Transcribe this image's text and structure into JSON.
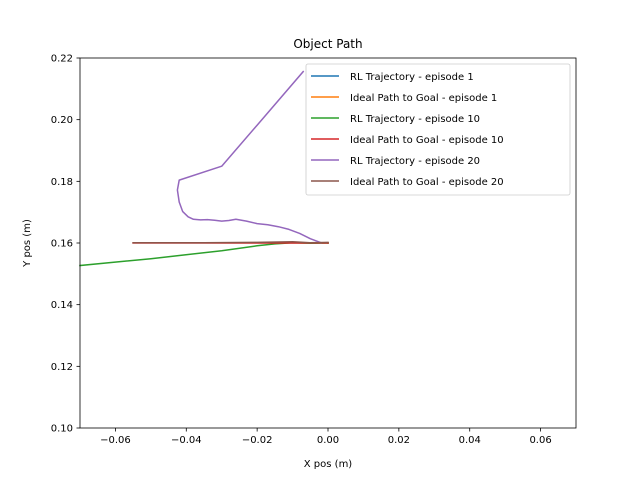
{
  "chart_data": {
    "type": "line",
    "title": "Object Path",
    "xlabel": "X pos (m)",
    "ylabel": "Y pos (m)",
    "xlim": [
      -0.07,
      0.07
    ],
    "ylim": [
      0.1,
      0.22
    ],
    "x_ticks": [
      -0.06,
      -0.04,
      -0.02,
      0.0,
      0.02,
      0.04,
      0.06
    ],
    "x_tick_labels": [
      "−0.06",
      "−0.04",
      "−0.02",
      "0.00",
      "0.02",
      "0.04",
      "0.06"
    ],
    "y_ticks": [
      0.1,
      0.12,
      0.14,
      0.16,
      0.18,
      0.2,
      0.22
    ],
    "y_tick_labels": [
      "0.10",
      "0.12",
      "0.14",
      "0.16",
      "0.18",
      "0.20",
      "0.22"
    ],
    "grid": false,
    "legend_position": "top-right",
    "series": [
      {
        "name": "RL Trajectory - episode 1",
        "color": "#1f77b4",
        "x": [
          0.0,
          0.0
        ],
        "y": [
          0.16,
          0.16
        ]
      },
      {
        "name": "Ideal Path to Goal - episode 1",
        "color": "#ff7f0e",
        "x": [
          0.0,
          0.0
        ],
        "y": [
          0.16,
          0.16
        ]
      },
      {
        "name": "RL Trajectory - episode 10",
        "color": "#2ca02c",
        "x": [
          -0.07,
          -0.05,
          -0.03,
          -0.02,
          -0.015,
          -0.01,
          -0.005,
          0.0
        ],
        "y": [
          0.1527,
          0.1549,
          0.1575,
          0.1591,
          0.1597,
          0.1601,
          0.1599,
          0.16
        ]
      },
      {
        "name": "Ideal Path to Goal - episode 10",
        "color": "#d62728",
        "x": [
          -0.055,
          0.0
        ],
        "y": [
          0.16,
          0.16
        ]
      },
      {
        "name": "RL Trajectory - episode 20",
        "color": "#9467bd",
        "x": [
          -0.007,
          -0.02,
          -0.03,
          -0.042,
          -0.0425,
          -0.042,
          -0.041,
          -0.0395,
          -0.038,
          -0.036,
          -0.034,
          -0.032,
          -0.03,
          -0.028,
          -0.026,
          -0.023,
          -0.02,
          -0.017,
          -0.014,
          -0.011,
          -0.008,
          -0.005,
          -0.002
        ],
        "y": [
          0.2156,
          0.1982,
          0.1849,
          0.1804,
          0.1772,
          0.1733,
          0.1702,
          0.1685,
          0.1677,
          0.1675,
          0.1676,
          0.1674,
          0.1671,
          0.1673,
          0.1677,
          0.1671,
          0.1663,
          0.1659,
          0.1653,
          0.1644,
          0.1631,
          0.1614,
          0.1601
        ]
      },
      {
        "name": "Ideal Path to Goal - episode 20",
        "color": "#8c564b",
        "x": [
          -0.055,
          -0.035,
          -0.02,
          -0.01,
          -0.005,
          0.0
        ],
        "y": [
          0.1601,
          0.1601,
          0.1602,
          0.1604,
          0.1601,
          0.1602
        ]
      }
    ]
  }
}
